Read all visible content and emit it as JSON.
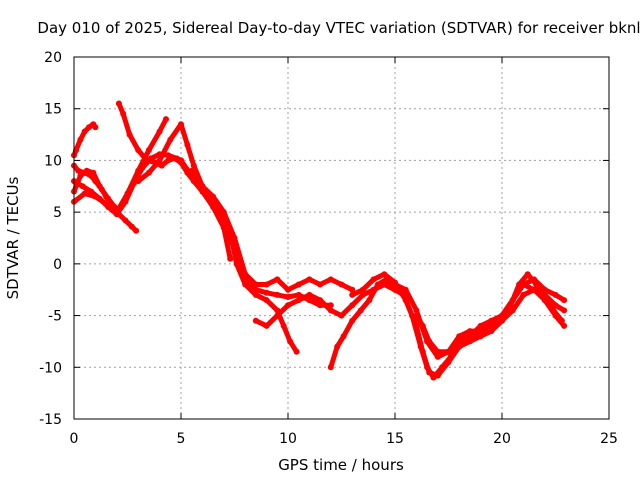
{
  "chart_data": {
    "type": "scatter",
    "title": "Day 010 of 2025, Sidereal Day-to-day VTEC variation (SDTVAR) for receiver bknl",
    "xlabel": "GPS time / hours",
    "ylabel": "SDTVAR / TECUs",
    "xlim": [
      0,
      25
    ],
    "ylim": [
      -15,
      20
    ],
    "xticks": [
      0,
      5,
      10,
      15,
      20,
      25
    ],
    "yticks": [
      -15,
      -10,
      -5,
      0,
      5,
      10,
      15,
      20
    ],
    "grid": true,
    "series": [
      {
        "name": "track-1",
        "color": "#ff0000",
        "x": [
          0.0,
          0.1,
          0.3,
          0.5,
          0.7,
          0.9,
          1.0
        ],
        "y": [
          10.5,
          11.0,
          12.0,
          12.8,
          13.2,
          13.5,
          13.2
        ]
      },
      {
        "name": "track-2",
        "color": "#ff0000",
        "x": [
          0.0,
          0.2,
          0.5,
          0.8,
          1.0,
          1.3,
          1.6,
          1.9,
          2.1,
          2.4,
          2.7,
          2.9
        ],
        "y": [
          9.5,
          9.0,
          8.8,
          8.5,
          8.0,
          7.2,
          6.3,
          5.5,
          4.8,
          4.2,
          3.6,
          3.2
        ]
      },
      {
        "name": "track-3",
        "color": "#ff0000",
        "x": [
          0.0,
          0.4,
          0.8,
          1.2,
          1.6,
          2.0,
          2.4,
          2.8,
          3.2,
          3.6,
          4.0,
          4.4,
          4.8,
          5.0
        ],
        "y": [
          8.0,
          7.5,
          7.0,
          6.3,
          5.5,
          4.8,
          6.0,
          7.8,
          9.3,
          10.2,
          10.6,
          10.5,
          10.2,
          10.0
        ]
      },
      {
        "name": "track-4",
        "color": "#ff0000",
        "x": [
          0.0,
          0.5,
          1.0,
          1.5,
          2.0,
          2.5,
          3.0,
          3.5,
          4.0,
          4.3
        ],
        "y": [
          6.0,
          6.8,
          6.5,
          5.8,
          5.0,
          6.8,
          9.0,
          11.0,
          12.8,
          14.0
        ]
      },
      {
        "name": "track-5",
        "color": "#ff0000",
        "x": [
          0.0,
          0.3,
          0.6,
          0.9,
          1.2,
          1.5,
          1.8,
          2.0
        ],
        "y": [
          7.0,
          8.5,
          9.0,
          8.8,
          7.5,
          6.5,
          5.5,
          5.0
        ]
      },
      {
        "name": "track-6",
        "color": "#ff0000",
        "x": [
          2.1,
          2.3,
          2.6,
          3.0,
          3.4,
          3.8,
          4.1,
          4.4,
          4.7,
          5.0,
          5.3,
          5.6,
          6.0,
          6.5,
          7.0,
          7.3
        ],
        "y": [
          15.5,
          14.5,
          12.5,
          11.0,
          10.0,
          9.8,
          9.5,
          10.0,
          10.2,
          9.8,
          8.8,
          8.0,
          7.0,
          5.5,
          3.5,
          0.5
        ]
      },
      {
        "name": "track-7",
        "color": "#ff0000",
        "x": [
          3.0,
          3.5,
          4.0,
          4.5,
          5.0,
          5.3,
          5.6,
          6.0,
          6.5,
          7.0,
          7.5,
          8.0,
          8.5,
          9.0,
          9.5,
          10.0,
          10.5,
          11.0,
          11.5,
          12.0
        ],
        "y": [
          8.0,
          8.8,
          10.0,
          12.0,
          13.5,
          11.5,
          9.5,
          7.5,
          6.0,
          4.5,
          1.5,
          -1.5,
          -2.5,
          -2.8,
          -3.0,
          -3.2,
          -3.0,
          -3.5,
          -4.0,
          -4.0
        ]
      },
      {
        "name": "track-8",
        "color": "#ff0000",
        "x": [
          5.0,
          5.5,
          6.0,
          6.5,
          7.0,
          7.2,
          7.4,
          7.6,
          8.0,
          8.5,
          9.0,
          9.5,
          9.8,
          10.1,
          10.4
        ],
        "y": [
          10.0,
          8.5,
          7.0,
          6.0,
          4.5,
          3.0,
          2.0,
          0.0,
          -2.0,
          -3.0,
          -3.5,
          -4.5,
          -6.0,
          -7.5,
          -8.5
        ]
      },
      {
        "name": "track-9",
        "color": "#ff0000",
        "x": [
          5.5,
          6.0,
          6.5,
          7.0,
          7.5,
          8.0,
          8.5,
          9.0,
          9.5,
          10.0,
          10.5,
          11.0,
          11.5,
          12.0,
          12.5,
          13.0
        ],
        "y": [
          9.0,
          7.5,
          6.5,
          5.0,
          2.5,
          -1.0,
          -2.0,
          -2.0,
          -1.5,
          -2.5,
          -2.0,
          -1.5,
          -2.0,
          -1.5,
          -2.0,
          -2.5
        ]
      },
      {
        "name": "track-10",
        "color": "#ff0000",
        "x": [
          8.5,
          9.0,
          9.5,
          10.0,
          10.5,
          11.0,
          11.5,
          12.0,
          12.5,
          13.0,
          13.5,
          14.0,
          14.5,
          15.0
        ],
        "y": [
          -5.5,
          -6.0,
          -5.0,
          -4.0,
          -3.5,
          -3.0,
          -3.5,
          -4.5,
          -5.0,
          -4.0,
          -3.0,
          -2.5,
          -2.0,
          -2.5
        ]
      },
      {
        "name": "track-11",
        "color": "#ff0000",
        "x": [
          12.0,
          12.3,
          12.6,
          13.0,
          13.4,
          13.8,
          14.2,
          14.6,
          15.0,
          15.4,
          15.8,
          16.2,
          16.5,
          16.8,
          17.2,
          17.6,
          18.0,
          18.5,
          19.0,
          19.5,
          20.0,
          20.4,
          20.8,
          21.2,
          21.6,
          22.0,
          22.4,
          22.8
        ],
        "y": [
          -10.0,
          -8.0,
          -7.0,
          -5.5,
          -4.5,
          -3.5,
          -2.0,
          -1.5,
          -2.5,
          -3.0,
          -5.0,
          -8.0,
          -10.0,
          -11.0,
          -10.0,
          -9.0,
          -8.0,
          -7.5,
          -7.0,
          -6.5,
          -5.5,
          -4.0,
          -2.0,
          -1.0,
          -2.0,
          -3.5,
          -4.5,
          -5.5
        ]
      },
      {
        "name": "track-12",
        "color": "#ff0000",
        "x": [
          13.0,
          13.5,
          14.0,
          14.5,
          15.0,
          15.5,
          16.0,
          16.3,
          16.6,
          17.0,
          17.5,
          18.0,
          18.5,
          19.0,
          19.5,
          20.0,
          20.5,
          21.0,
          21.5,
          22.0,
          22.5,
          22.9
        ],
        "y": [
          -3.0,
          -2.5,
          -1.5,
          -1.0,
          -1.8,
          -3.5,
          -6.0,
          -8.5,
          -10.5,
          -10.8,
          -9.5,
          -8.0,
          -7.0,
          -6.0,
          -5.5,
          -5.0,
          -3.5,
          -2.0,
          -1.5,
          -2.5,
          -3.0,
          -3.5
        ]
      },
      {
        "name": "track-13",
        "color": "#ff0000",
        "x": [
          14.0,
          14.5,
          15.0,
          15.5,
          16.0,
          16.5,
          17.0,
          17.5,
          18.0,
          18.5,
          19.0,
          19.5,
          20.0,
          20.5,
          21.0,
          21.5,
          22.0,
          22.5,
          22.9
        ],
        "y": [
          -2.5,
          -2.0,
          -2.0,
          -2.5,
          -4.5,
          -7.5,
          -9.0,
          -8.5,
          -7.0,
          -6.5,
          -6.5,
          -6.0,
          -5.5,
          -4.5,
          -3.0,
          -2.5,
          -3.0,
          -4.0,
          -4.5
        ]
      },
      {
        "name": "track-14",
        "color": "#ff0000",
        "x": [
          16.0,
          16.3,
          16.6,
          17.0,
          17.5,
          18.0,
          18.5,
          19.0,
          19.5,
          20.0,
          20.5,
          21.0,
          21.5,
          22.0,
          22.5,
          22.9
        ],
        "y": [
          -5.0,
          -6.0,
          -7.5,
          -8.5,
          -8.5,
          -7.5,
          -7.0,
          -6.5,
          -6.0,
          -5.0,
          -3.5,
          -2.0,
          -2.5,
          -3.5,
          -5.0,
          -6.0
        ]
      }
    ]
  }
}
